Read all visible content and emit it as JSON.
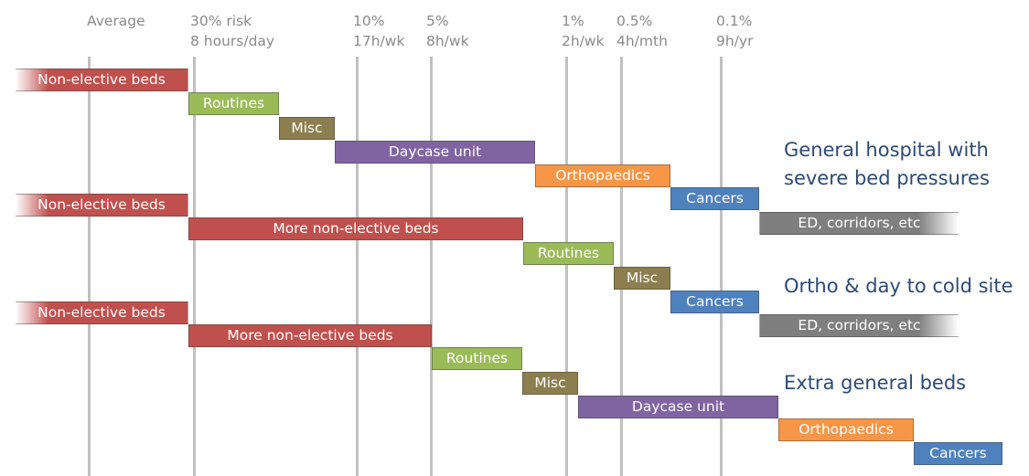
{
  "columns": [
    {
      "key": "avg",
      "line1": "Average",
      "line2": ""
    },
    {
      "key": "r30",
      "line1": "30% risk",
      "line2": "8 hours/day"
    },
    {
      "key": "r10",
      "line1": "10%",
      "line2": "17h/wk"
    },
    {
      "key": "r5",
      "line1": "5%",
      "line2": "8h/wk"
    },
    {
      "key": "r1",
      "line1": "1%",
      "line2": "2h/wk"
    },
    {
      "key": "r05",
      "line1": "0.5%",
      "line2": "4h/mth"
    },
    {
      "key": "r01",
      "line1": "0.1%",
      "line2": "9h/yr"
    }
  ],
  "colors": {
    "red": "#c0504d",
    "green": "#9bbb59",
    "olive": "#8c7e4e",
    "purple": "#8064a2",
    "orange": "#f79646",
    "blue": "#4f81bd",
    "gray": "#7f7f7f",
    "title": "#2b4a76"
  },
  "scenarios": [
    {
      "title": "General hospital with severe bed pressures",
      "title_lines": [
        "General hospital with",
        "severe bed pressures"
      ],
      "bars": [
        {
          "label": "Non-elective beds",
          "color": "red"
        },
        {
          "label": "Routines",
          "color": "green"
        },
        {
          "label": "Misc",
          "color": "olive"
        },
        {
          "label": "Daycase unit",
          "color": "purple"
        },
        {
          "label": "Orthopaedics",
          "color": "orange"
        },
        {
          "label": "Cancers",
          "color": "blue"
        },
        {
          "label": "ED, corridors, etc",
          "color": "gray"
        }
      ]
    },
    {
      "title": "Ortho & day to cold site",
      "title_lines": [
        "Ortho & day to cold site"
      ],
      "bars": [
        {
          "label": "Non-elective beds",
          "color": "red"
        },
        {
          "label": "More non-elective beds",
          "color": "red"
        },
        {
          "label": "Routines",
          "color": "green"
        },
        {
          "label": "Misc",
          "color": "olive"
        },
        {
          "label": "Cancers",
          "color": "blue"
        },
        {
          "label": "ED, corridors, etc",
          "color": "gray"
        }
      ]
    },
    {
      "title": "Extra general beds",
      "title_lines": [
        "Extra general beds"
      ],
      "bars": [
        {
          "label": "Non-elective beds",
          "color": "red"
        },
        {
          "label": "More non-elective beds",
          "color": "red"
        },
        {
          "label": "Routines",
          "color": "green"
        },
        {
          "label": "Misc",
          "color": "olive"
        },
        {
          "label": "Daycase unit",
          "color": "purple"
        },
        {
          "label": "Orthopaedics",
          "color": "orange"
        },
        {
          "label": "Cancers",
          "color": "blue"
        }
      ]
    }
  ]
}
